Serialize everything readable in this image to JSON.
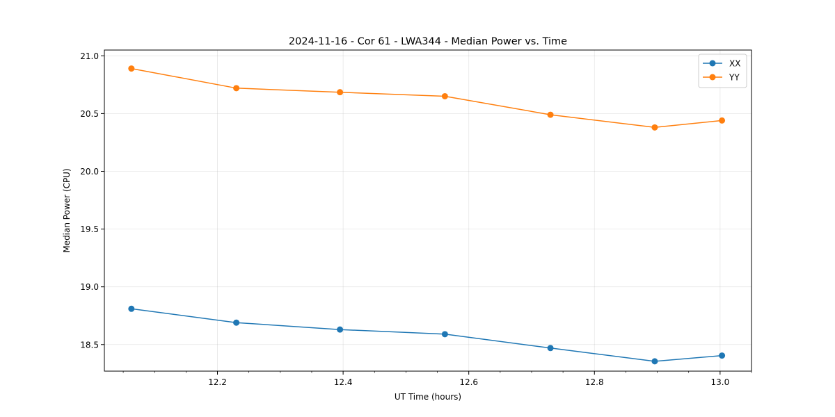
{
  "chart_data": {
    "type": "line",
    "title": "2024-11-16 - Cor 61 - LWA344 - Median Power vs. Time",
    "xlabel": "UT Time (hours)",
    "ylabel": "Median Power (CPU)",
    "xlim": [
      12.02,
      13.05
    ],
    "ylim": [
      18.27,
      21.05
    ],
    "xticks": [
      12.2,
      12.4,
      12.6,
      12.8,
      13.0
    ],
    "xtick_labels": [
      "12.2",
      "12.4",
      "12.6",
      "12.8",
      "13.0"
    ],
    "xminor_step": 0.05,
    "yticks": [
      18.5,
      19.0,
      19.5,
      20.0,
      20.5,
      21.0
    ],
    "ytick_labels": [
      "18.5",
      "19.0",
      "19.5",
      "20.0",
      "20.5",
      "21.0"
    ],
    "grid": true,
    "legend_position": "top-right",
    "x": [
      12.063,
      12.23,
      12.395,
      12.562,
      12.73,
      12.896,
      13.003
    ],
    "series": [
      {
        "name": "XX",
        "color": "#1f77b4",
        "marker": "circle",
        "values": [
          18.81,
          18.69,
          18.63,
          18.59,
          18.47,
          18.355,
          18.405
        ]
      },
      {
        "name": "YY",
        "color": "#ff7f0e",
        "marker": "circle",
        "values": [
          20.89,
          20.72,
          20.685,
          20.65,
          20.49,
          20.38,
          20.44
        ]
      }
    ]
  }
}
